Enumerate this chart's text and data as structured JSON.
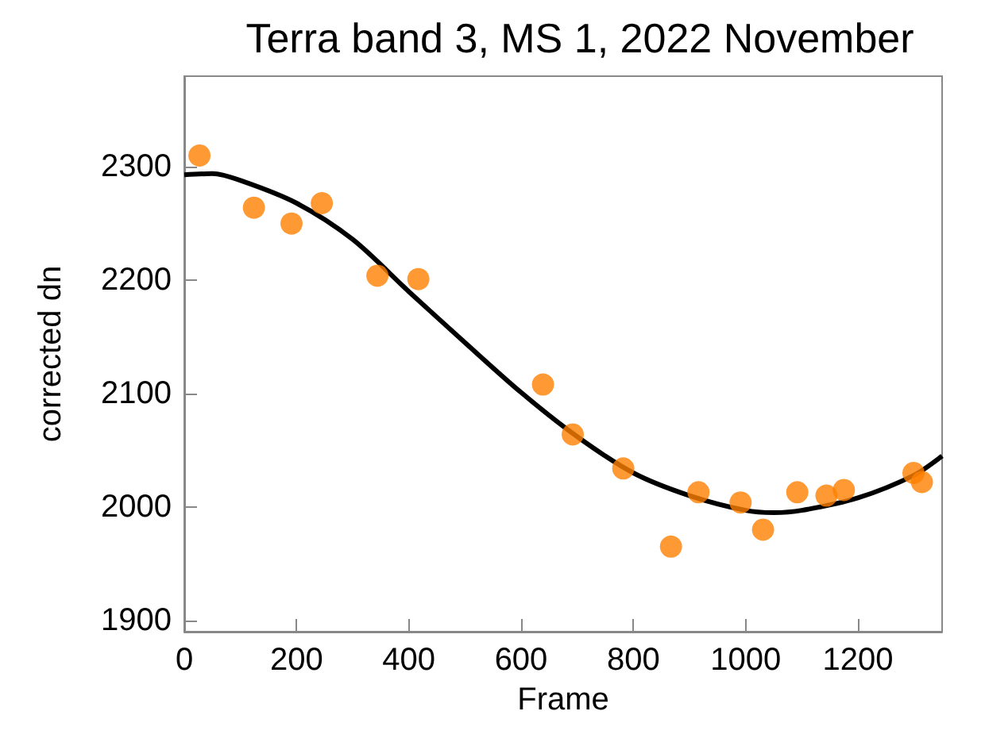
{
  "chart_data": {
    "type": "scatter",
    "title": "Terra band 3, MS 1, 2022 November",
    "xlabel": "Frame",
    "ylabel": "corrected dn",
    "xlim": [
      0,
      1350
    ],
    "xticks": [
      0,
      200,
      400,
      600,
      800,
      1000,
      1200
    ],
    "ylim": [
      1890,
      2380
    ],
    "yticks": [
      1900,
      2000,
      2100,
      2200,
      2300
    ],
    "grid": false,
    "series": [
      {
        "color": "#ff7f00",
        "marker": "circle",
        "x": [
          27,
          124,
          191,
          245,
          344,
          417,
          639,
          692,
          782,
          867,
          916,
          991,
          1031,
          1092,
          1144,
          1175,
          1299,
          1314
        ],
        "values": [
          2310,
          2264,
          2250,
          2268,
          2204,
          2201,
          2108,
          2064,
          2034,
          1965,
          2013,
          2004,
          1980,
          2013,
          2010,
          2015,
          2030,
          2022
        ]
      },
      {
        "type": "line",
        "color": "#000000",
        "marker": "none",
        "line_style": "solid",
        "x": [
          0,
          50,
          100,
          200,
          300,
          400,
          500,
          600,
          700,
          800,
          900,
          1000,
          1050,
          1100,
          1200,
          1300,
          1350
        ],
        "values": [
          2293,
          2294,
          2288,
          2268,
          2236,
          2190,
          2145,
          2101,
          2062,
          2030,
          2010,
          1997,
          1995,
          1997,
          2008,
          2028,
          2045
        ]
      }
    ]
  }
}
